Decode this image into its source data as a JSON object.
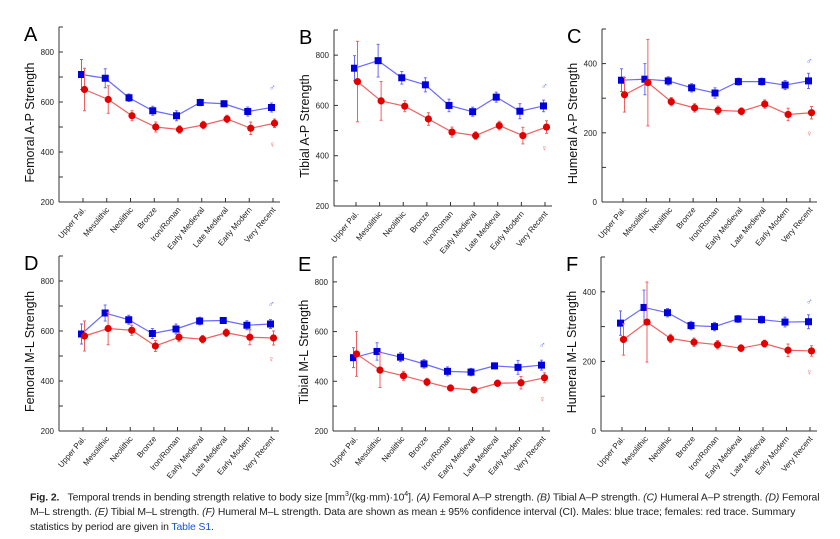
{
  "chart_data": [
    {
      "type": "line",
      "panel": "A",
      "ylabel": "Femoral A-P Strength",
      "ylim": [
        200,
        900
      ],
      "yticks": [
        200,
        400,
        600,
        800
      ],
      "categories": [
        "Upper Pal.",
        "Mesolithic",
        "Neolithic",
        "Bronze",
        "Iron/Roman",
        "Early Medieval",
        "Late Medieval",
        "Early Modern",
        "Very Recent"
      ],
      "series": [
        {
          "name": "♂",
          "color": "#0000dd",
          "line": "#6a6aff",
          "marker": "square",
          "values": [
            710,
            695,
            617,
            565,
            545,
            598,
            593,
            562,
            578
          ],
          "ci": [
            60,
            38,
            15,
            18,
            20,
            13,
            12,
            18,
            18
          ]
        },
        {
          "name": "♀",
          "color": "#e00000",
          "line": "#f06060",
          "marker": "circle",
          "values": [
            650,
            610,
            545,
            500,
            490,
            508,
            532,
            495,
            515
          ],
          "ci": [
            85,
            55,
            20,
            20,
            15,
            15,
            15,
            25,
            17
          ]
        }
      ]
    },
    {
      "type": "line",
      "panel": "B",
      "ylabel": "Tibial A-P Strength",
      "ylim": [
        200,
        900
      ],
      "yticks": [
        200,
        400,
        600,
        800
      ],
      "categories": [
        "Upper Pal.",
        "Mesolithic",
        "Neolithic",
        "Bronze",
        "Iron/Roman",
        "Early Medieval",
        "Late Medieval",
        "Early Modern",
        "Very Recent"
      ],
      "series": [
        {
          "name": "♂",
          "color": "#0000dd",
          "line": "#6a6aff",
          "marker": "square",
          "values": [
            748,
            778,
            710,
            682,
            600,
            575,
            633,
            577,
            598
          ],
          "ci": [
            50,
            65,
            25,
            28,
            25,
            18,
            20,
            30,
            23
          ]
        },
        {
          "name": "♀",
          "color": "#e00000",
          "line": "#f06060",
          "marker": "circle",
          "values": [
            695,
            618,
            597,
            546,
            494,
            480,
            520,
            480,
            514
          ],
          "ci": [
            160,
            77,
            22,
            25,
            20,
            15,
            17,
            33,
            25
          ]
        }
      ]
    },
    {
      "type": "line",
      "panel": "C",
      "ylabel": "Humeral A-P Strength",
      "ylim": [
        0,
        500
      ],
      "yticks": [
        0,
        200,
        400
      ],
      "categories": [
        "Upper Pal.",
        "Mesolithic",
        "Neolithic",
        "Bronze",
        "Iron/Roman",
        "Early Medieval",
        "Late Medieval",
        "Early Modern",
        "Very Recent"
      ],
      "series": [
        {
          "name": "♂",
          "color": "#0000dd",
          "line": "#6a6aff",
          "marker": "square",
          "values": [
            352,
            355,
            350,
            330,
            315,
            348,
            348,
            338,
            350
          ],
          "ci": [
            33,
            45,
            12,
            12,
            15,
            10,
            10,
            13,
            22
          ]
        },
        {
          "name": "♀",
          "color": "#e00000",
          "line": "#f06060",
          "marker": "circle",
          "values": [
            310,
            345,
            290,
            272,
            265,
            262,
            283,
            253,
            258
          ],
          "ci": [
            50,
            125,
            12,
            12,
            12,
            10,
            12,
            18,
            18
          ]
        }
      ]
    },
    {
      "type": "line",
      "panel": "D",
      "ylabel": "Femoral M-L Strength",
      "ylim": [
        200,
        900
      ],
      "yticks": [
        200,
        400,
        600,
        800
      ],
      "categories": [
        "Upper Pal.",
        "Mesolithic",
        "Neolithic",
        "Bronze",
        "Iron/Roman",
        "Early Medieval",
        "Late Medieval",
        "Early Modern",
        "Very Recent"
      ],
      "series": [
        {
          "name": "♂",
          "color": "#0000dd",
          "line": "#6a6aff",
          "marker": "square",
          "values": [
            588,
            672,
            645,
            590,
            608,
            640,
            642,
            623,
            628
          ],
          "ci": [
            40,
            32,
            18,
            20,
            20,
            15,
            12,
            18,
            18
          ]
        },
        {
          "name": "♀",
          "color": "#e00000",
          "line": "#f06060",
          "marker": "circle",
          "values": [
            580,
            610,
            603,
            540,
            575,
            567,
            593,
            575,
            572
          ],
          "ci": [
            60,
            65,
            20,
            22,
            18,
            15,
            15,
            30,
            28
          ]
        }
      ]
    },
    {
      "type": "line",
      "panel": "E",
      "ylabel": "Tibial M-L Strength",
      "ylim": [
        200,
        900
      ],
      "yticks": [
        200,
        400,
        600,
        800
      ],
      "categories": [
        "Upper Pal.",
        "Mesolithic",
        "Neolithic",
        "Bronze",
        "Iron/Roman",
        "Early Medieval",
        "Late Medieval",
        "Early Modern",
        "Very Recent"
      ],
      "series": [
        {
          "name": "♂",
          "color": "#0000dd",
          "line": "#6a6aff",
          "marker": "square",
          "values": [
            495,
            520,
            497,
            470,
            440,
            437,
            462,
            456,
            465
          ],
          "ci": [
            40,
            35,
            18,
            17,
            18,
            15,
            12,
            28,
            20
          ]
        },
        {
          "name": "♀",
          "color": "#e00000",
          "line": "#f06060",
          "marker": "circle",
          "values": [
            510,
            445,
            422,
            397,
            373,
            365,
            392,
            394,
            414
          ],
          "ci": [
            90,
            70,
            18,
            15,
            12,
            10,
            12,
            25,
            20
          ]
        }
      ]
    },
    {
      "type": "line",
      "panel": "F",
      "ylabel": "Humeral M-L Strength",
      "ylim": [
        0,
        500
      ],
      "yticks": [
        0,
        200,
        400
      ],
      "categories": [
        "Upper Pal.",
        "Mesolithic",
        "Neolithic",
        "Bronze",
        "Iron/Roman",
        "Early Medieval",
        "Late Medieval",
        "Early Modern",
        "Very Recent"
      ],
      "series": [
        {
          "name": "♂",
          "color": "#0000dd",
          "line": "#6a6aff",
          "marker": "square",
          "values": [
            310,
            355,
            340,
            303,
            300,
            322,
            320,
            313,
            314
          ],
          "ci": [
            35,
            50,
            12,
            12,
            12,
            10,
            10,
            14,
            20
          ]
        },
        {
          "name": "♀",
          "color": "#e00000",
          "line": "#f06060",
          "marker": "circle",
          "values": [
            263,
            313,
            266,
            255,
            248,
            238,
            251,
            232,
            230
          ],
          "ci": [
            45,
            115,
            12,
            12,
            12,
            10,
            10,
            18,
            15
          ]
        }
      ]
    }
  ],
  "caption": {
    "fig_label": "Fig. 2.",
    "part1": "Temporal trends in bending strength relative to body size [mm",
    "sup1": "3",
    "part2": "/(kg·mm)·10",
    "sup2": "4",
    "part3": "]. ",
    "a": "(A)",
    "a_text": " Femoral A–P strength. ",
    "b": "(B)",
    "b_text": " Tibial A–P strength. ",
    "c": "(C)",
    "c_text": " Humeral A–P strength. ",
    "d": "(D)",
    "d_text": " Femoral M–L strength. ",
    "e": "(E)",
    "e_text": " Tibial M–L strength. ",
    "f": "(F)",
    "f_text": " Humeral M–L strength. Data are shown as mean ± 95% confidence interval (CI). Males: blue trace; females: red trace. Summary statistics by period are given in ",
    "link": "Table S1",
    "end": "."
  }
}
